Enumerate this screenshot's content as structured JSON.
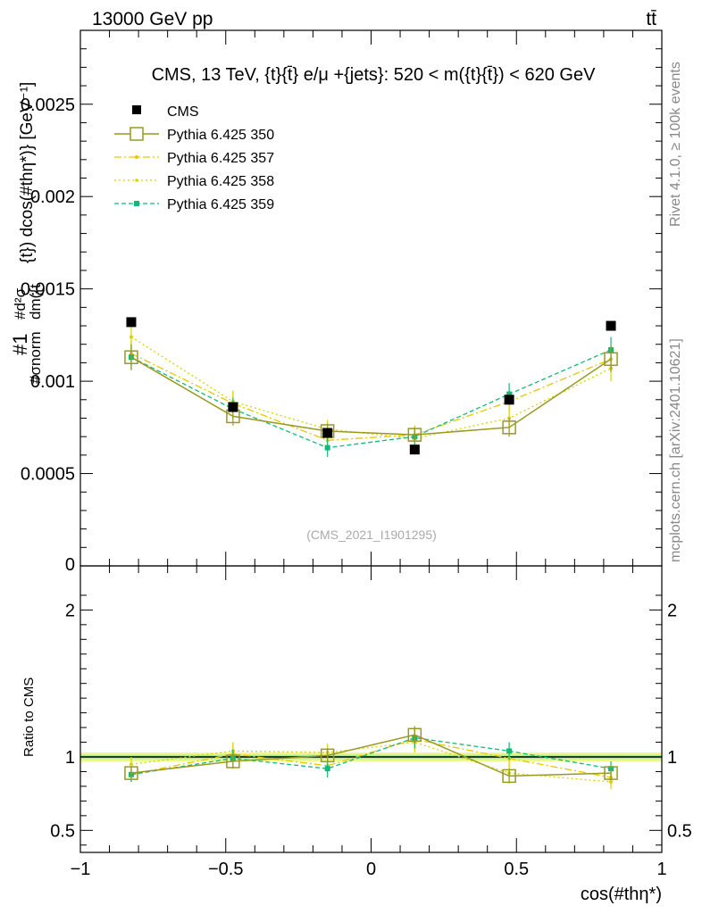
{
  "header": {
    "left_label": "13000 GeV pp",
    "right_label": "tt̄"
  },
  "side_labels": {
    "rivet": "Rivet 4.1.0, ≥ 100k events",
    "mcplots": "mcplots.cern.ch [arXiv:2401.10621]"
  },
  "watermark": "(CMS_2021_I1901295)",
  "colors": {
    "cms": "#000000",
    "p350": "#999922",
    "p357": "#e6c800",
    "p358": "#d4d400",
    "p359": "#11bb77",
    "band_outer": "#f2f58a",
    "band_inner": "#a8f0a0"
  },
  "chart_data": [
    {
      "type": "scatter",
      "panel": "main",
      "title": "CMS, 13 TeV, {t}{t̄} e/μ +{jets}: 520 < m({t}{t̄}) < 620 GeV",
      "ylabel_parts": {
        "frac": "#1",
        "norm": "#σnorm",
        "numer": "#d²σ",
        "denom": "dm({t",
        "rest": "{t}) dcos(#thη*)} [GeV⁻¹]"
      },
      "xlim": [
        -1,
        1
      ],
      "ylim": [
        0,
        0.0029
      ],
      "yticks": [
        {
          "v": 0.0005,
          "label": "0.0005"
        },
        {
          "v": 0.001,
          "label": "0.001"
        },
        {
          "v": 0.0015,
          "label": "0.0015"
        },
        {
          "v": 0.002,
          "label": "0.002"
        },
        {
          "v": 0.0025,
          "label": "0.0025"
        }
      ],
      "y_zero_label": "0",
      "x": [
        -0.825,
        -0.475,
        -0.15,
        0.15,
        0.475,
        0.825
      ],
      "series": [
        {
          "key": "cms",
          "name": "CMS",
          "style": "data",
          "values": [
            0.00132,
            0.00086,
            0.00072,
            0.00063,
            0.0009,
            0.0013
          ],
          "err": [
            1e-05,
            1e-05,
            1e-05,
            1e-05,
            1e-05,
            1e-05
          ]
        },
        {
          "key": "p350",
          "name": "Pythia 6.425 350",
          "style": "open",
          "values": [
            0.00113,
            0.00081,
            0.00073,
            0.00071,
            0.00075,
            0.00112
          ],
          "err": [
            7e-05,
            5e-05,
            4e-05,
            4e-05,
            5e-05,
            7e-05
          ]
        },
        {
          "key": "p357",
          "name": "Pythia 6.425 357",
          "style": "dashdot",
          "values": [
            0.00115,
            0.00088,
            0.00068,
            0.00071,
            0.00089,
            0.00112
          ],
          "err": [
            7e-05,
            6e-05,
            5e-05,
            5e-05,
            6e-05,
            7e-05
          ]
        },
        {
          "key": "p358",
          "name": "Pythia 6.425 358",
          "style": "dotted",
          "values": [
            0.00124,
            0.00089,
            0.00074,
            0.00069,
            0.0008,
            0.00107
          ],
          "err": [
            8e-05,
            6e-05,
            5e-05,
            5e-05,
            6e-05,
            7e-05
          ]
        },
        {
          "key": "p359",
          "name": "Pythia 6.425 359",
          "style": "dashed",
          "values": [
            0.00113,
            0.00085,
            0.00064,
            0.0007,
            0.00093,
            0.00117
          ],
          "err": [
            7e-05,
            6e-05,
            5e-05,
            5e-05,
            6e-05,
            7e-05
          ]
        }
      ],
      "legend_position": "top-left"
    },
    {
      "type": "scatter",
      "panel": "ratio",
      "ylabel": "Ratio to CMS",
      "xlabel": "cos(#thη*)",
      "xlim": [
        -1,
        1
      ],
      "ylim": [
        0.35,
        2.3
      ],
      "yticks": [
        {
          "v": 0.5,
          "label": "0.5"
        },
        {
          "v": 1,
          "label": "1"
        },
        {
          "v": 2,
          "label": "2"
        }
      ],
      "xticks": [
        {
          "v": -1,
          "label": "−1"
        },
        {
          "v": -0.5,
          "label": "−0.5"
        },
        {
          "v": 0,
          "label": "0"
        },
        {
          "v": 0.5,
          "label": "0.5"
        },
        {
          "v": 1,
          "label": "1"
        }
      ],
      "band_outer": [
        0.97,
        1.03
      ],
      "band_inner": [
        0.985,
        1.015
      ],
      "x": [
        -0.825,
        -0.475,
        -0.15,
        0.15,
        0.475,
        0.825
      ],
      "series": [
        {
          "key": "p350",
          "style": "open",
          "values": [
            0.89,
            0.97,
            1.01,
            1.15,
            0.87,
            0.89
          ],
          "err": [
            0.04,
            0.05,
            0.05,
            0.06,
            0.05,
            0.04
          ]
        },
        {
          "key": "p357",
          "style": "dashdot",
          "values": [
            0.88,
            1.02,
            0.94,
            1.12,
            0.99,
            0.86
          ],
          "err": [
            0.05,
            0.06,
            0.06,
            0.07,
            0.06,
            0.05
          ]
        },
        {
          "key": "p358",
          "style": "dotted",
          "values": [
            0.95,
            1.04,
            1.03,
            1.1,
            0.89,
            0.83
          ],
          "err": [
            0.05,
            0.06,
            0.06,
            0.07,
            0.06,
            0.05
          ]
        },
        {
          "key": "p359",
          "style": "dashed",
          "values": [
            0.88,
            0.99,
            0.92,
            1.13,
            1.04,
            0.92
          ],
          "err": [
            0.05,
            0.06,
            0.06,
            0.07,
            0.06,
            0.05
          ]
        }
      ]
    }
  ]
}
